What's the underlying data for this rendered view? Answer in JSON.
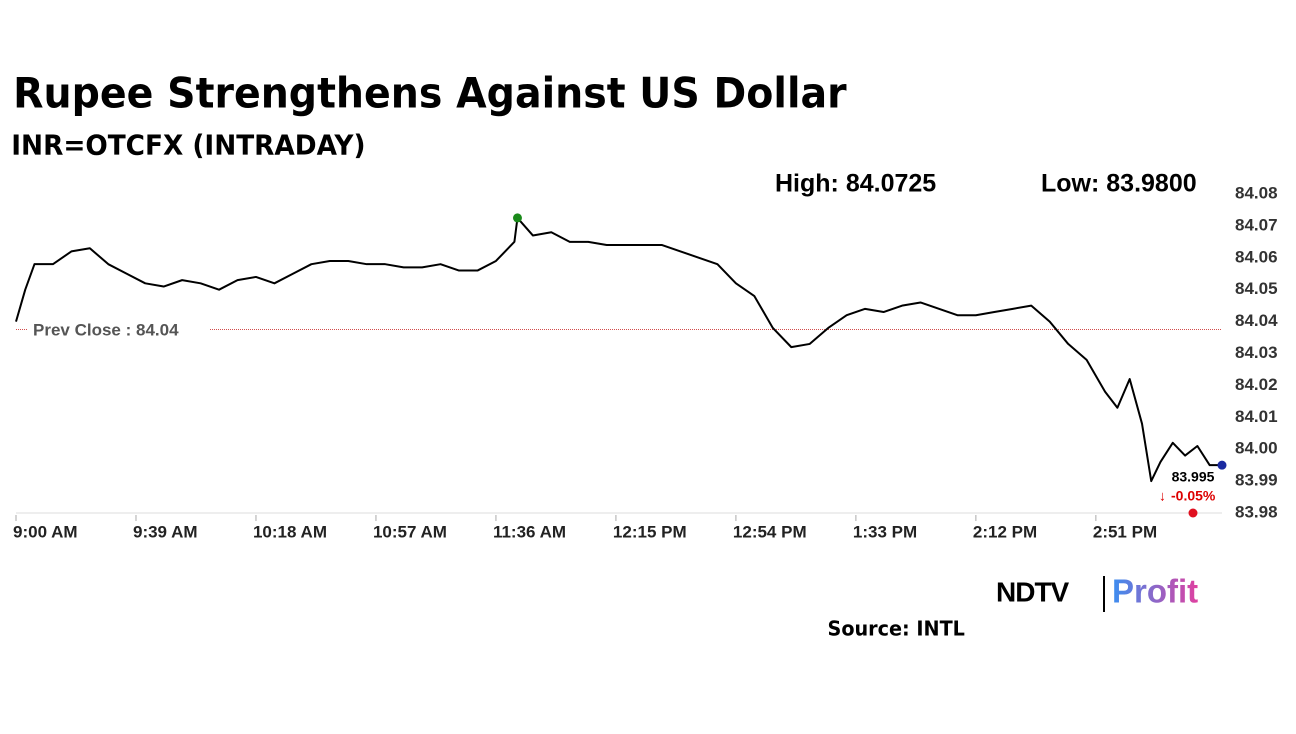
{
  "chart_data": {
    "type": "line",
    "title": "Rupee Strengthens Against US Dollar",
    "subtitle": "INR=OTCFX (INTRADAY)",
    "high_label": "High: 84.0725",
    "high": 84.0725,
    "low_label": "Low: 83.9800",
    "low": 83.98,
    "prev_close": {
      "value": 84.0375,
      "label": "Prev Close : 84.04"
    },
    "last": 83.995,
    "last_label": "83.995",
    "change_label": "-0.05%",
    "color": "#000000",
    "x": [
      0,
      3,
      6,
      12,
      18,
      24,
      30,
      36,
      42,
      48,
      54,
      60,
      66,
      72,
      78,
      84,
      90,
      96,
      102,
      108,
      114,
      120,
      126,
      132,
      138,
      144,
      150,
      156,
      162,
      163,
      168,
      174,
      180,
      186,
      192,
      198,
      204,
      210,
      216,
      222,
      228,
      234,
      240,
      246,
      252,
      258,
      264,
      270,
      276,
      282,
      288,
      294,
      300,
      306,
      312,
      318,
      324,
      330,
      336,
      342,
      348,
      354,
      358,
      362,
      366,
      369,
      372,
      376,
      380,
      384,
      388,
      392
    ],
    "values": [
      84.04,
      84.05,
      84.058,
      84.058,
      84.062,
      84.063,
      84.058,
      84.055,
      84.052,
      84.051,
      84.053,
      84.052,
      84.05,
      84.053,
      84.054,
      84.052,
      84.055,
      84.058,
      84.059,
      84.059,
      84.058,
      84.058,
      84.057,
      84.057,
      84.058,
      84.056,
      84.056,
      84.059,
      84.065,
      84.0725,
      84.067,
      84.068,
      84.065,
      84.065,
      84.064,
      84.064,
      84.064,
      84.064,
      84.062,
      84.06,
      84.058,
      84.052,
      84.048,
      84.038,
      84.032,
      84.033,
      84.038,
      84.042,
      84.044,
      84.043,
      84.045,
      84.046,
      84.044,
      84.042,
      84.042,
      84.043,
      84.044,
      84.045,
      84.04,
      84.033,
      84.028,
      84.018,
      84.013,
      84.022,
      84.008,
      83.99,
      83.996,
      84.002,
      83.998,
      84.001,
      83.995,
      83.995
    ],
    "xlim": [
      0,
      392
    ],
    "xticks": [
      {
        "value": 0,
        "label": "9:00 AM"
      },
      {
        "value": 39,
        "label": "9:39 AM"
      },
      {
        "value": 78,
        "label": "10:18 AM"
      },
      {
        "value": 117,
        "label": "10:57 AM"
      },
      {
        "value": 156,
        "label": "11:36 AM"
      },
      {
        "value": 195,
        "label": "12:15 PM"
      },
      {
        "value": 234,
        "label": "12:54 PM"
      },
      {
        "value": 273,
        "label": "1:33 PM"
      },
      {
        "value": 312,
        "label": "2:12 PM"
      },
      {
        "value": 351,
        "label": "2:51 PM"
      }
    ],
    "ylim": [
      83.98,
      84.08
    ],
    "yticks": [
      84.08,
      84.07,
      84.06,
      84.05,
      84.04,
      84.03,
      84.02,
      84.01,
      {
        "value": 84,
        "label": "84.00"
      },
      83.99,
      83.98
    ],
    "source": "Source: INTL",
    "logo": {
      "left": "NDTV",
      "right": "Profit"
    }
  }
}
